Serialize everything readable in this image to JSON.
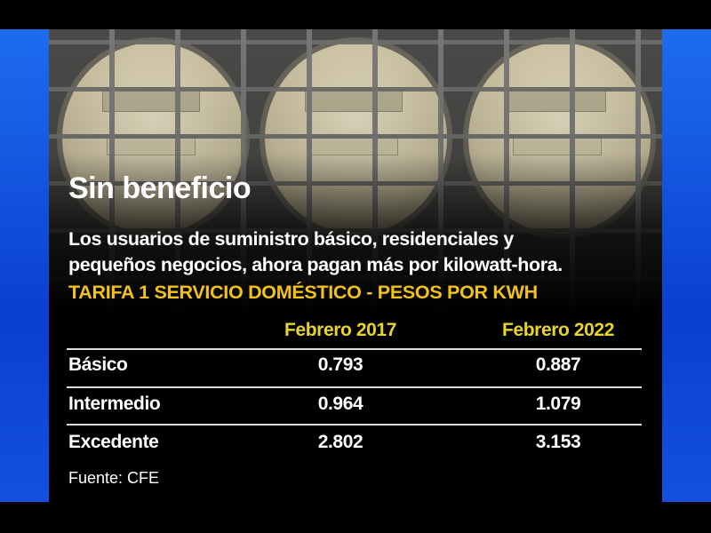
{
  "title": "Sin beneficio",
  "subtitle_lines": [
    "Los usuarios de suministro básico, residenciales y",
    "pequeños negocios, ahora pagan más por kilowatt-hora."
  ],
  "kicker": "TARIFA 1 SERVICIO DOMÉSTICO - PESOS POR KWH",
  "table": {
    "columns": [
      "Febrero 2017",
      "Febrero 2022"
    ],
    "rows": [
      {
        "label": "Básico",
        "values": [
          "0.793",
          "0.887"
        ]
      },
      {
        "label": "Intermedio",
        "values": [
          "0.964",
          "1.079"
        ]
      },
      {
        "label": "Excedente",
        "values": [
          "2.802",
          "3.153"
        ]
      }
    ]
  },
  "source": "Fuente: CFE",
  "colors": {
    "accent": "#f2c21b",
    "header": "#e8d42a",
    "side_bars": "#1e6cf0",
    "background": "#000000"
  }
}
